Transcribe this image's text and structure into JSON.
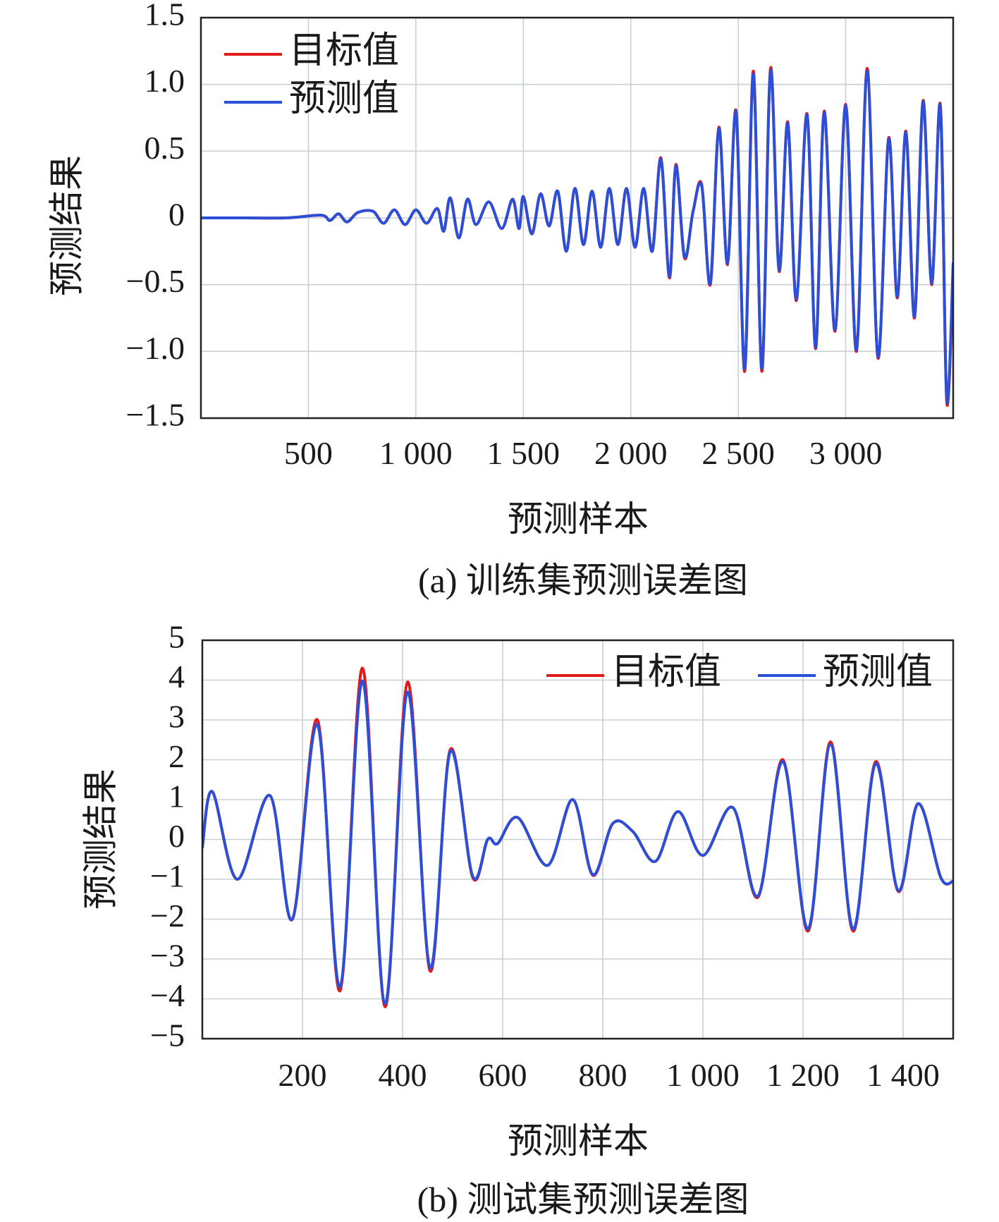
{
  "chart_data": [
    {
      "type": "line",
      "caption": "(a) 训练集预测误差图",
      "xlabel": "预测样本",
      "ylabel": "预测结果",
      "xlim": [
        0,
        3500
      ],
      "ylim": [
        -1.5,
        1.5
      ],
      "xticks": [
        500,
        1000,
        1500,
        2000,
        2500,
        3000
      ],
      "xtick_labels": [
        "500",
        "1 000",
        "1 500",
        "2 000",
        "2 500",
        "3 000"
      ],
      "yticks": [
        1.5,
        1.0,
        0.5,
        0,
        -0.5,
        -1.0,
        -1.5
      ],
      "ytick_labels": [
        "1.5",
        "1.0",
        "0.5",
        "0",
        "−0.5",
        "−1.0",
        "−1.5"
      ],
      "grid": true,
      "legend_position": "top-left",
      "legend_layout": "vertical",
      "legend": [
        "目标值",
        "预测值"
      ],
      "series": [
        {
          "name": "目标值",
          "color": "#e31a1c",
          "x": [
            0,
            200,
            400,
            560,
            600,
            640,
            680,
            730,
            800,
            850,
            900,
            950,
            1000,
            1050,
            1100,
            1130,
            1160,
            1200,
            1240,
            1280,
            1340,
            1400,
            1450,
            1480,
            1500,
            1540,
            1580,
            1620,
            1660,
            1700,
            1740,
            1780,
            1820,
            1860,
            1900,
            1940,
            1980,
            2020,
            2060,
            2100,
            2140,
            2180,
            2210,
            2250,
            2290,
            2330,
            2370,
            2410,
            2450,
            2490,
            2530,
            2570,
            2610,
            2650,
            2690,
            2730,
            2770,
            2820,
            2860,
            2900,
            2950,
            3000,
            3050,
            3100,
            3150,
            3200,
            3240,
            3280,
            3320,
            3360,
            3400,
            3440,
            3470,
            3500
          ],
          "y": [
            0.0,
            0.0,
            0.0,
            0.02,
            -0.02,
            0.03,
            -0.03,
            0.04,
            0.05,
            -0.04,
            0.06,
            -0.05,
            0.06,
            -0.04,
            0.07,
            -0.1,
            0.15,
            -0.15,
            0.14,
            -0.05,
            0.12,
            -0.08,
            0.14,
            -0.08,
            0.16,
            -0.12,
            0.18,
            -0.06,
            0.2,
            -0.25,
            0.22,
            -0.2,
            0.2,
            -0.22,
            0.22,
            -0.2,
            0.22,
            -0.22,
            0.22,
            -0.25,
            0.45,
            -0.45,
            0.4,
            -0.3,
            0.05,
            0.25,
            -0.5,
            0.68,
            -0.35,
            0.8,
            -1.15,
            1.1,
            -1.15,
            1.12,
            -0.4,
            0.72,
            -0.62,
            0.78,
            -0.98,
            0.8,
            -0.85,
            0.85,
            -1.0,
            1.12,
            -1.05,
            0.6,
            -0.6,
            0.65,
            -0.75,
            0.88,
            -0.5,
            0.85,
            -1.38,
            -0.35
          ]
        },
        {
          "name": "预测值",
          "color": "#2b4fd6",
          "x": [
            0,
            200,
            400,
            560,
            600,
            640,
            680,
            730,
            800,
            850,
            900,
            950,
            1000,
            1050,
            1100,
            1130,
            1160,
            1200,
            1240,
            1280,
            1340,
            1400,
            1450,
            1480,
            1500,
            1540,
            1580,
            1620,
            1660,
            1700,
            1740,
            1780,
            1820,
            1860,
            1900,
            1940,
            1980,
            2020,
            2060,
            2100,
            2140,
            2180,
            2210,
            2250,
            2290,
            2330,
            2370,
            2410,
            2450,
            2490,
            2530,
            2570,
            2610,
            2650,
            2690,
            2730,
            2770,
            2820,
            2860,
            2900,
            2950,
            3000,
            3050,
            3100,
            3150,
            3200,
            3240,
            3280,
            3320,
            3360,
            3400,
            3440,
            3470,
            3500
          ],
          "y": [
            0.0,
            0.0,
            0.0,
            0.02,
            -0.02,
            0.03,
            -0.03,
            0.04,
            0.05,
            -0.04,
            0.06,
            -0.05,
            0.06,
            -0.04,
            0.07,
            -0.1,
            0.15,
            -0.15,
            0.14,
            -0.05,
            0.12,
            -0.08,
            0.14,
            -0.08,
            0.16,
            -0.12,
            0.18,
            -0.06,
            0.2,
            -0.25,
            0.22,
            -0.2,
            0.2,
            -0.22,
            0.22,
            -0.2,
            0.22,
            -0.22,
            0.22,
            -0.25,
            0.44,
            -0.44,
            0.39,
            -0.29,
            0.05,
            0.24,
            -0.49,
            0.67,
            -0.34,
            0.79,
            -1.13,
            1.08,
            -1.13,
            1.1,
            -0.39,
            0.71,
            -0.61,
            0.77,
            -0.97,
            0.79,
            -0.84,
            0.84,
            -0.99,
            1.1,
            -1.04,
            0.59,
            -0.59,
            0.64,
            -0.74,
            0.87,
            -0.49,
            0.84,
            -1.36,
            -0.34
          ]
        }
      ]
    },
    {
      "type": "line",
      "caption": "(b) 测试集预测误差图",
      "xlabel": "预测样本",
      "ylabel": "预测结果",
      "xlim": [
        0,
        1500
      ],
      "ylim": [
        -5,
        5
      ],
      "xticks": [
        200,
        400,
        600,
        800,
        1000,
        1200,
        1400
      ],
      "xtick_labels": [
        "200",
        "400",
        "600",
        "800",
        "1 000",
        "1 200",
        "1 400"
      ],
      "yticks": [
        5,
        4,
        3,
        2,
        1,
        0,
        -1,
        -2,
        -3,
        -4,
        -5
      ],
      "ytick_labels": [
        "5",
        "4",
        "3",
        "2",
        "1",
        "0",
        "−1",
        "−2",
        "−3",
        "−4",
        "−5"
      ],
      "grid": true,
      "legend_position": "top-right",
      "legend_layout": "horizontal",
      "legend": [
        "目标值",
        "预测值"
      ],
      "series": [
        {
          "name": "目标值",
          "color": "#e31a1c",
          "x": [
            0,
            20,
            70,
            135,
            180,
            230,
            275,
            320,
            365,
            410,
            455,
            495,
            540,
            570,
            590,
            630,
            690,
            740,
            780,
            820,
            860,
            905,
            950,
            1000,
            1060,
            1110,
            1160,
            1210,
            1255,
            1300,
            1345,
            1390,
            1430,
            1475,
            1500
          ],
          "y": [
            -0.2,
            1.2,
            -1.0,
            1.1,
            -2.0,
            3.0,
            -3.8,
            4.3,
            -4.2,
            3.95,
            -3.3,
            2.25,
            -0.95,
            0.0,
            -0.1,
            0.55,
            -0.65,
            1.0,
            -0.9,
            0.4,
            0.2,
            -0.55,
            0.7,
            -0.4,
            0.8,
            -1.45,
            2.0,
            -2.3,
            2.45,
            -2.3,
            1.95,
            -1.3,
            0.9,
            -0.95,
            -1.05
          ]
        },
        {
          "name": "预测值",
          "color": "#2b4fd6",
          "x": [
            0,
            20,
            70,
            135,
            180,
            230,
            275,
            320,
            365,
            410,
            455,
            495,
            540,
            570,
            590,
            630,
            690,
            740,
            780,
            820,
            860,
            905,
            950,
            1000,
            1060,
            1110,
            1160,
            1210,
            1255,
            1300,
            1345,
            1390,
            1430,
            1475,
            1500
          ],
          "y": [
            -0.2,
            1.2,
            -1.0,
            1.1,
            -2.0,
            2.88,
            -3.7,
            3.98,
            -4.12,
            3.7,
            -3.22,
            2.2,
            -0.92,
            0.0,
            -0.1,
            0.55,
            -0.65,
            1.0,
            -0.88,
            0.4,
            0.2,
            -0.55,
            0.7,
            -0.4,
            0.8,
            -1.42,
            1.95,
            -2.25,
            2.38,
            -2.25,
            1.9,
            -1.28,
            0.9,
            -0.95,
            -1.05
          ]
        }
      ]
    }
  ]
}
